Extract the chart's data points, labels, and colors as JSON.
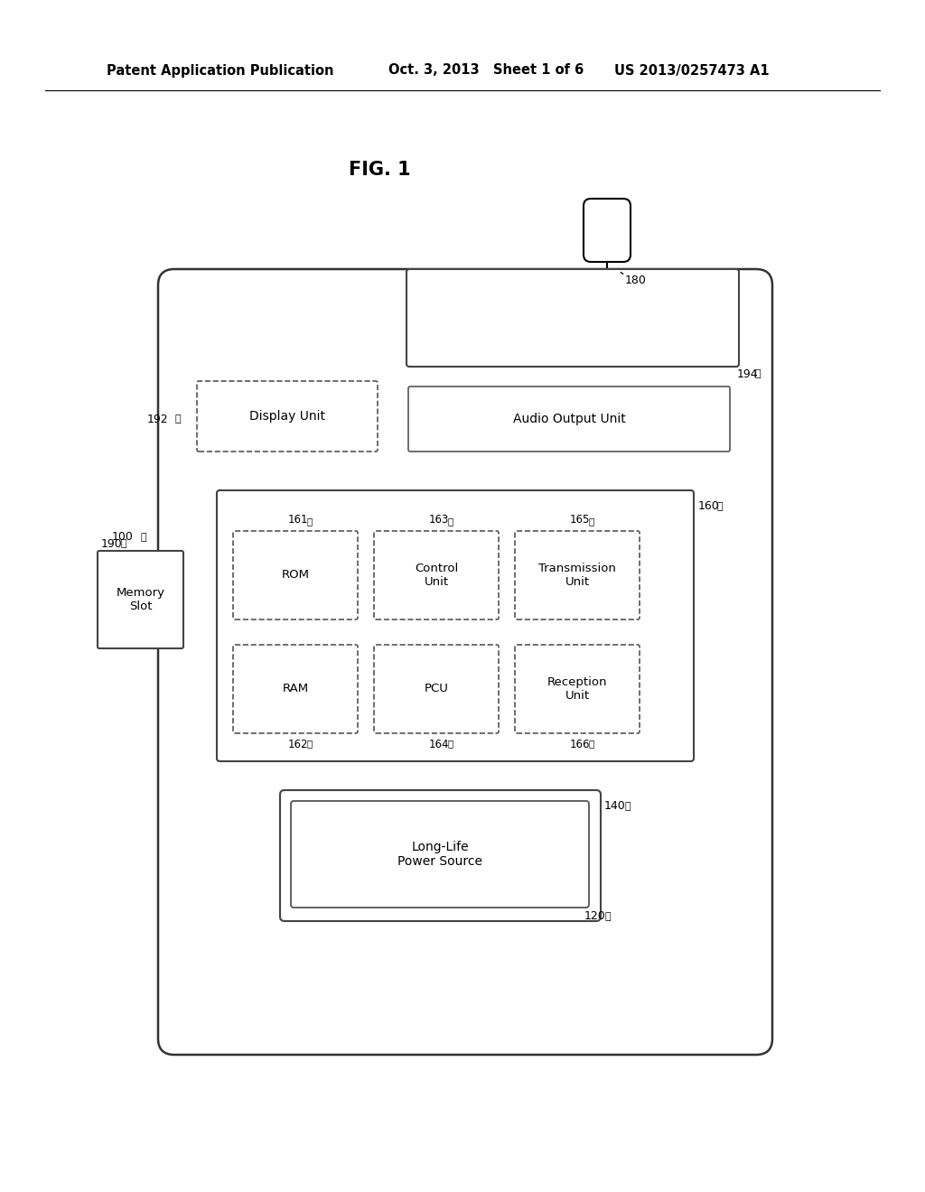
{
  "header_left": "Patent Application Publication",
  "header_mid": "Oct. 3, 2013   Sheet 1 of 6",
  "header_right": "US 2013/0257473 A1",
  "fig_title": "FIG. 1",
  "bg_color": "#ffffff",
  "box_labels": {
    "display": "Display Unit",
    "audio": "Audio Output Unit",
    "memory": "Memory\nSlot",
    "rom": "ROM",
    "control": "Control\nUnit",
    "transmission": "Transmission\nUnit",
    "ram": "RAM",
    "pcu": "PCU",
    "reception": "Reception\nUnit",
    "power": "Long-Life\nPower Source"
  },
  "ref_numbers": {
    "antenna": "180",
    "display": "192",
    "audio_outer": "194",
    "device": "100",
    "memory": "190",
    "pcb": "160",
    "rom": "161",
    "ram": "162",
    "control": "163",
    "pcu": "164",
    "transmission": "165",
    "reception": "166",
    "power_outer": "140",
    "power_inner": "120"
  }
}
